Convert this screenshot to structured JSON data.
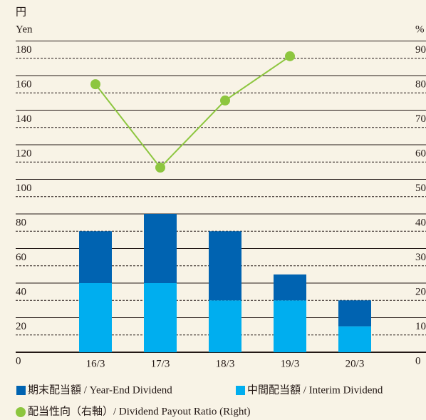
{
  "chart_data": {
    "type": "bar",
    "y_unit_ja": "円",
    "y_unit": "Yen",
    "y2_unit": "%",
    "categories": [
      "16/3",
      "17/3",
      "18/3",
      "19/3",
      "20/3"
    ],
    "stacked": true,
    "series": [
      {
        "name": "中間配当額 / Interim Dividend",
        "color": "#00aeef",
        "values": [
          40,
          40,
          30,
          30,
          15
        ]
      },
      {
        "name": "期末配当額 / Year-End Dividend",
        "color": "#0063b1",
        "values": [
          30,
          40,
          40,
          15,
          15
        ]
      },
      {
        "name": "配当性向（右軸）/ Dividend Payout Ratio (Right)",
        "color": "#8dc63f",
        "type": "line",
        "axis": "y2",
        "values": [
          77.5,
          53.4,
          72.8,
          85.6,
          null
        ]
      }
    ],
    "ylim": [
      0,
      180
    ],
    "yticks": [
      0,
      20,
      40,
      60,
      80,
      100,
      120,
      140,
      160,
      180
    ],
    "y2lim": [
      0,
      90
    ],
    "y2ticks": [
      0,
      10,
      20,
      30,
      40,
      50,
      60,
      70,
      80,
      90
    ],
    "grid": true
  }
}
